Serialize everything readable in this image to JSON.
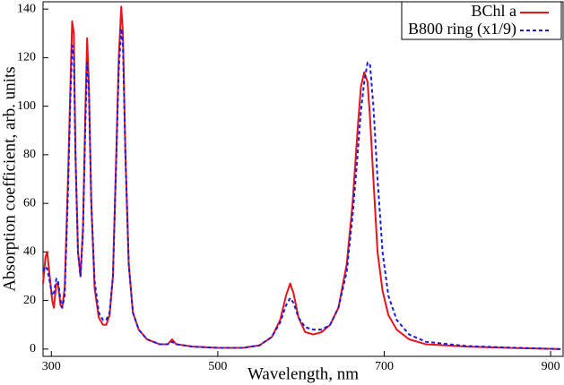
{
  "chart_data": {
    "type": "line",
    "xlabel": "Wavelength, nm",
    "ylabel": "Absorption coefficient, arb. units",
    "xlim": [
      290,
      915
    ],
    "ylim": [
      -3,
      143
    ],
    "xticks": [
      300,
      500,
      700,
      900
    ],
    "yticks": [
      0,
      20,
      40,
      60,
      80,
      100,
      120,
      140
    ],
    "legend": "upper right",
    "x": [
      290,
      293,
      295,
      298,
      301,
      303,
      306,
      308,
      311,
      313,
      316,
      320,
      323,
      325,
      327,
      329,
      332,
      335,
      338,
      341,
      343,
      345,
      348,
      352,
      357,
      362,
      366,
      370,
      374,
      378,
      381,
      384,
      386,
      389,
      393,
      398,
      405,
      415,
      430,
      440,
      445,
      450,
      470,
      500,
      530,
      550,
      565,
      575,
      582,
      587,
      591,
      597,
      605,
      615,
      625,
      635,
      645,
      655,
      662,
      668,
      672,
      676,
      680,
      683,
      687,
      692,
      698,
      705,
      715,
      730,
      750,
      800,
      850,
      912
    ],
    "series": [
      {
        "name": "BChl a",
        "color": "#e8141c",
        "dash": "solid",
        "values": [
          27,
          38,
          40,
          30,
          20,
          17,
          27,
          27,
          18,
          17,
          25,
          70,
          110,
          135,
          130,
          80,
          40,
          30,
          50,
          100,
          128,
          110,
          60,
          25,
          13,
          10,
          10,
          14,
          30,
          80,
          120,
          141,
          130,
          80,
          35,
          15,
          8,
          4,
          2,
          2,
          4,
          2,
          1,
          0.5,
          0.5,
          1.5,
          5,
          12,
          22,
          27,
          23,
          13,
          7,
          6,
          7,
          10,
          17,
          35,
          60,
          90,
          108,
          114,
          110,
          95,
          70,
          40,
          24,
          14,
          8,
          4,
          2,
          1,
          0.5,
          0
        ]
      },
      {
        "name": "B800 ring (x1/9)",
        "color": "#1a1ae0",
        "dash": "dashed",
        "values": [
          32,
          34,
          33,
          28,
          22,
          23,
          29,
          28,
          20,
          17,
          22,
          65,
          105,
          125,
          120,
          80,
          40,
          30,
          48,
          95,
          118,
          108,
          60,
          28,
          15,
          12,
          12,
          15,
          30,
          78,
          115,
          132,
          125,
          80,
          35,
          15,
          8,
          4,
          2,
          2,
          3,
          2,
          1,
          0.5,
          0.5,
          1.5,
          5,
          11,
          18,
          21,
          19,
          13,
          9,
          8,
          8,
          10,
          17,
          32,
          55,
          80,
          98,
          110,
          118,
          117,
          100,
          70,
          40,
          22,
          12,
          6,
          3,
          1.2,
          0.6,
          0
        ]
      }
    ]
  }
}
